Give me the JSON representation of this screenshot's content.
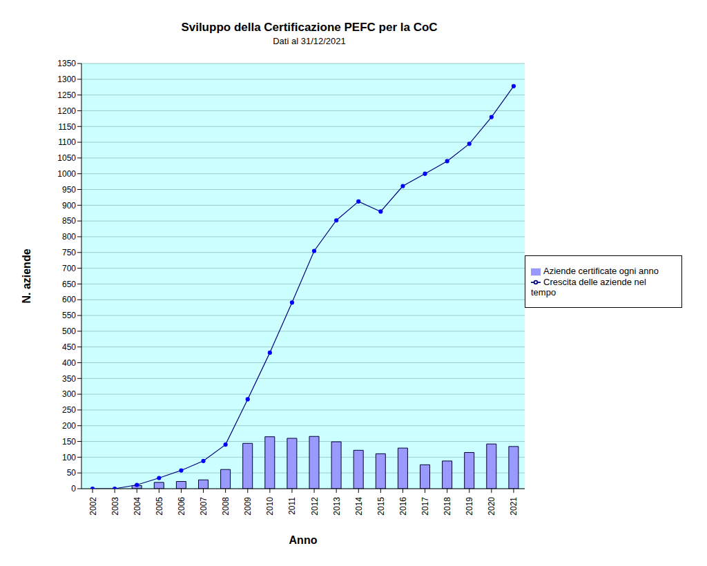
{
  "chart_data": {
    "type": "bar",
    "title": "Sviluppo della Certificazione PEFC per la CoC",
    "subtitle": "Dati al 31/12/2021",
    "x_label": "Anno",
    "y_label": "N. aziende",
    "categories": [
      "2002",
      "2003",
      "2004",
      "2005",
      "2006",
      "2007",
      "2008",
      "2009",
      "2010",
      "2011",
      "2012",
      "2013",
      "2014",
      "2015",
      "2016",
      "2017",
      "2018",
      "2019",
      "2020",
      "2021"
    ],
    "series": [
      {
        "name": "Aziende certificate ogni anno",
        "type": "bar",
        "color": "#9999ff",
        "values": [
          0,
          0,
          10,
          20,
          23,
          28,
          61,
          144,
          165,
          160,
          166,
          149,
          122,
          111,
          129,
          76,
          88,
          115,
          142,
          134
        ]
      },
      {
        "name": "Crescita delle aziende nel tempo",
        "type": "line",
        "color": "#000080",
        "marker": "circle",
        "values": [
          0,
          0,
          12,
          34,
          58,
          88,
          140,
          284,
          432,
          591,
          755,
          852,
          912,
          880,
          961,
          1000,
          1040,
          1095,
          1180,
          1278
        ]
      }
    ],
    "ylim": [
      0,
      1350
    ],
    "yticks": [
      0,
      50,
      100,
      150,
      200,
      250,
      300,
      350,
      400,
      450,
      500,
      550,
      600,
      650,
      700,
      750,
      800,
      850,
      900,
      950,
      1000,
      1050,
      1100,
      1150,
      1200,
      1250,
      1300,
      1350
    ],
    "grid": true,
    "legend": "right"
  }
}
